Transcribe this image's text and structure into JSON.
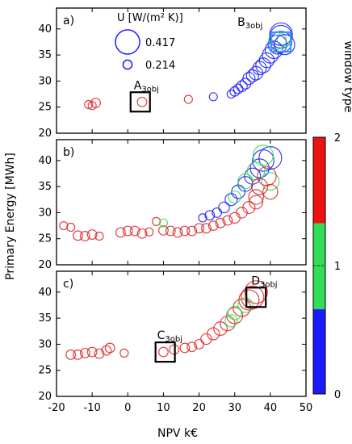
{
  "chart_data": {
    "type": "scatter",
    "xlabel": "NPV k€",
    "ylabel": "Primary Energy [MWh]",
    "xlim": [
      -20,
      50
    ],
    "x_ticks": [
      "-20",
      "-10",
      "0",
      "10",
      "20",
      "30",
      "40",
      "50"
    ],
    "y_ticks": [
      "20",
      "25",
      "30",
      "35",
      "40"
    ],
    "marker_size_legend": {
      "title": "U [W/(m² K)]",
      "entries": [
        {
          "label": "0.417",
          "u": 0.417
        },
        {
          "label": "0.214",
          "u": 0.214
        }
      ]
    },
    "colorbar": {
      "title": "window type",
      "ticks": [
        "0",
        "1",
        "2"
      ],
      "segments": [
        {
          "from": 0,
          "to": 0.66,
          "color": "#1a1aff"
        },
        {
          "from": 0.66,
          "to": 1.33,
          "color": "#33dd55"
        },
        {
          "from": 1.33,
          "to": 2,
          "color": "#ee1111"
        }
      ]
    },
    "colors": {
      "0": "#1a1aff",
      "1": "#33dd55",
      "2": "#dd2222"
    },
    "panels": [
      {
        "label": "a)",
        "ylim": [
          20,
          44
        ],
        "annotations": [
          {
            "text": "A",
            "sub": "3obj",
            "x": 3.5,
            "y": 26
          },
          {
            "text": "B",
            "sub": "3obj",
            "x": 43,
            "y": 37.5
          }
        ],
        "points": [
          {
            "x": -11,
            "y": 25.5,
            "w": 2,
            "u": 0.2
          },
          {
            "x": -9,
            "y": 25.8,
            "w": 2,
            "u": 0.22
          },
          {
            "x": -10,
            "y": 25.3,
            "w": 2,
            "u": 0.2
          },
          {
            "x": 4,
            "y": 26,
            "w": 2,
            "u": 0.22
          },
          {
            "x": 17,
            "y": 26.5,
            "w": 2,
            "u": 0.2
          },
          {
            "x": 24,
            "y": 27,
            "w": 0,
            "u": 0.2
          },
          {
            "x": 29,
            "y": 27.5,
            "w": 0,
            "u": 0.2
          },
          {
            "x": 30,
            "y": 28,
            "w": 0,
            "u": 0.22
          },
          {
            "x": 31,
            "y": 28.5,
            "w": 0,
            "u": 0.22
          },
          {
            "x": 32,
            "y": 29,
            "w": 0,
            "u": 0.24
          },
          {
            "x": 33,
            "y": 29.5,
            "w": 0,
            "u": 0.24
          },
          {
            "x": 34,
            "y": 30.5,
            "w": 0,
            "u": 0.26
          },
          {
            "x": 35,
            "y": 31,
            "w": 0,
            "u": 0.26
          },
          {
            "x": 36,
            "y": 31.5,
            "w": 0,
            "u": 0.28
          },
          {
            "x": 37,
            "y": 32.5,
            "w": 0,
            "u": 0.28
          },
          {
            "x": 38,
            "y": 33,
            "w": 0,
            "u": 0.3
          },
          {
            "x": 39,
            "y": 34,
            "w": 0,
            "u": 0.3
          },
          {
            "x": 40,
            "y": 35,
            "w": 0,
            "u": 0.32
          },
          {
            "x": 41,
            "y": 36,
            "w": 0,
            "u": 0.34
          },
          {
            "x": 42,
            "y": 37,
            "w": 0,
            "u": 0.36
          },
          {
            "x": 43,
            "y": 37.5,
            "w": 0,
            "u": 0.4
          },
          {
            "x": 43,
            "y": 38.5,
            "w": 0,
            "u": 0.417
          },
          {
            "x": 42,
            "y": 37.8,
            "w": 1,
            "u": 0.34
          },
          {
            "x": 44,
            "y": 38,
            "w": 1,
            "u": 0.3
          },
          {
            "x": 43,
            "y": 39,
            "w": 0,
            "u": 0.417
          },
          {
            "x": 44,
            "y": 37,
            "w": 0,
            "u": 0.38
          }
        ]
      },
      {
        "label": "b)",
        "ylim": [
          20,
          44
        ],
        "annotations": [],
        "points": [
          {
            "x": -18,
            "y": 27.5,
            "w": 2,
            "u": 0.2
          },
          {
            "x": -16,
            "y": 27.2,
            "w": 2,
            "u": 0.2
          },
          {
            "x": -14,
            "y": 25.6,
            "w": 2,
            "u": 0.22
          },
          {
            "x": -12,
            "y": 25.5,
            "w": 2,
            "u": 0.22
          },
          {
            "x": -10,
            "y": 25.8,
            "w": 2,
            "u": 0.22
          },
          {
            "x": -8,
            "y": 25.5,
            "w": 2,
            "u": 0.2
          },
          {
            "x": -2,
            "y": 26.2,
            "w": 2,
            "u": 0.22
          },
          {
            "x": 0,
            "y": 26.5,
            "w": 2,
            "u": 0.22
          },
          {
            "x": 2,
            "y": 26.5,
            "w": 2,
            "u": 0.22
          },
          {
            "x": 4,
            "y": 26,
            "w": 2,
            "u": 0.22
          },
          {
            "x": 6,
            "y": 26.3,
            "w": 2,
            "u": 0.2
          },
          {
            "x": 8,
            "y": 28.3,
            "w": 2,
            "u": 0.2
          },
          {
            "x": 10,
            "y": 26.6,
            "w": 2,
            "u": 0.22
          },
          {
            "x": 12,
            "y": 26.5,
            "w": 2,
            "u": 0.22
          },
          {
            "x": 14,
            "y": 26.2,
            "w": 2,
            "u": 0.22
          },
          {
            "x": 16,
            "y": 26.5,
            "w": 2,
            "u": 0.22
          },
          {
            "x": 18,
            "y": 26.5,
            "w": 2,
            "u": 0.22
          },
          {
            "x": 20,
            "y": 27,
            "w": 2,
            "u": 0.22
          },
          {
            "x": 22,
            "y": 27,
            "w": 2,
            "u": 0.22
          },
          {
            "x": 24,
            "y": 27.5,
            "w": 2,
            "u": 0.22
          },
          {
            "x": 26,
            "y": 28,
            "w": 2,
            "u": 0.22
          },
          {
            "x": 28,
            "y": 28.5,
            "w": 2,
            "u": 0.22
          },
          {
            "x": 30,
            "y": 29,
            "w": 2,
            "u": 0.24
          },
          {
            "x": 32,
            "y": 30,
            "w": 2,
            "u": 0.24
          },
          {
            "x": 34,
            "y": 31,
            "w": 2,
            "u": 0.26
          },
          {
            "x": 36,
            "y": 32,
            "w": 2,
            "u": 0.28
          },
          {
            "x": 10,
            "y": 28,
            "w": 1,
            "u": 0.2
          },
          {
            "x": 21,
            "y": 29,
            "w": 0,
            "u": 0.2
          },
          {
            "x": 23,
            "y": 29.5,
            "w": 0,
            "u": 0.22
          },
          {
            "x": 25,
            "y": 30,
            "w": 0,
            "u": 0.22
          },
          {
            "x": 27,
            "y": 31,
            "w": 0,
            "u": 0.24
          },
          {
            "x": 29,
            "y": 32.5,
            "w": 0,
            "u": 0.26
          },
          {
            "x": 31,
            "y": 34,
            "w": 0,
            "u": 0.28
          },
          {
            "x": 33,
            "y": 35.5,
            "w": 0,
            "u": 0.3
          },
          {
            "x": 35,
            "y": 37,
            "w": 0,
            "u": 0.32
          },
          {
            "x": 37,
            "y": 38.5,
            "w": 0,
            "u": 0.36
          },
          {
            "x": 38,
            "y": 40,
            "w": 0,
            "u": 0.4
          },
          {
            "x": 40,
            "y": 40.5,
            "w": 0,
            "u": 0.417
          },
          {
            "x": 30,
            "y": 33,
            "w": 1,
            "u": 0.26
          },
          {
            "x": 33,
            "y": 36,
            "w": 1,
            "u": 0.3
          },
          {
            "x": 36,
            "y": 38,
            "w": 1,
            "u": 0.34
          },
          {
            "x": 38,
            "y": 41,
            "w": 1,
            "u": 0.38
          },
          {
            "x": 40,
            "y": 36,
            "w": 1,
            "u": 0.34
          },
          {
            "x": 37,
            "y": 35,
            "w": 2,
            "u": 0.32
          },
          {
            "x": 39,
            "y": 37,
            "w": 2,
            "u": 0.36
          },
          {
            "x": 40,
            "y": 34,
            "w": 2,
            "u": 0.3
          },
          {
            "x": 36,
            "y": 33,
            "w": 2,
            "u": 0.3
          }
        ]
      },
      {
        "label": "c)",
        "ylim": [
          20,
          44
        ],
        "annotations": [
          {
            "text": "C",
            "sub": "3obj",
            "x": 10.5,
            "y": 28.5
          },
          {
            "text": "D",
            "sub": "3obj",
            "x": 36,
            "y": 39
          }
        ],
        "points": [
          {
            "x": -16,
            "y": 28,
            "w": 2,
            "u": 0.22
          },
          {
            "x": -14,
            "y": 28,
            "w": 2,
            "u": 0.22
          },
          {
            "x": -12,
            "y": 28.3,
            "w": 2,
            "u": 0.22
          },
          {
            "x": -10,
            "y": 28.5,
            "w": 2,
            "u": 0.22
          },
          {
            "x": -8,
            "y": 28.2,
            "w": 2,
            "u": 0.22
          },
          {
            "x": -6,
            "y": 28.8,
            "w": 2,
            "u": 0.22
          },
          {
            "x": -5,
            "y": 29.3,
            "w": 2,
            "u": 0.22
          },
          {
            "x": -1,
            "y": 28.3,
            "w": 2,
            "u": 0.2
          },
          {
            "x": 10,
            "y": 28.5,
            "w": 2,
            "u": 0.22
          },
          {
            "x": 13,
            "y": 29,
            "w": 2,
            "u": 0.22
          },
          {
            "x": 16,
            "y": 29.3,
            "w": 2,
            "u": 0.22
          },
          {
            "x": 18,
            "y": 29.5,
            "w": 2,
            "u": 0.22
          },
          {
            "x": 20,
            "y": 30,
            "w": 2,
            "u": 0.22
          },
          {
            "x": 22,
            "y": 31,
            "w": 2,
            "u": 0.24
          },
          {
            "x": 24,
            "y": 32,
            "w": 2,
            "u": 0.26
          },
          {
            "x": 26,
            "y": 33,
            "w": 2,
            "u": 0.28
          },
          {
            "x": 28,
            "y": 34,
            "w": 2,
            "u": 0.3
          },
          {
            "x": 30,
            "y": 35.5,
            "w": 2,
            "u": 0.32
          },
          {
            "x": 32,
            "y": 37,
            "w": 2,
            "u": 0.34
          },
          {
            "x": 34,
            "y": 38.5,
            "w": 2,
            "u": 0.38
          },
          {
            "x": 35,
            "y": 39,
            "w": 2,
            "u": 0.417
          },
          {
            "x": 36,
            "y": 40,
            "w": 2,
            "u": 0.417
          },
          {
            "x": 30,
            "y": 36,
            "w": 1,
            "u": 0.28
          },
          {
            "x": 33,
            "y": 37.5,
            "w": 1,
            "u": 0.3
          },
          {
            "x": 29,
            "y": 34.5,
            "w": 1,
            "u": 0.26
          }
        ]
      }
    ]
  }
}
